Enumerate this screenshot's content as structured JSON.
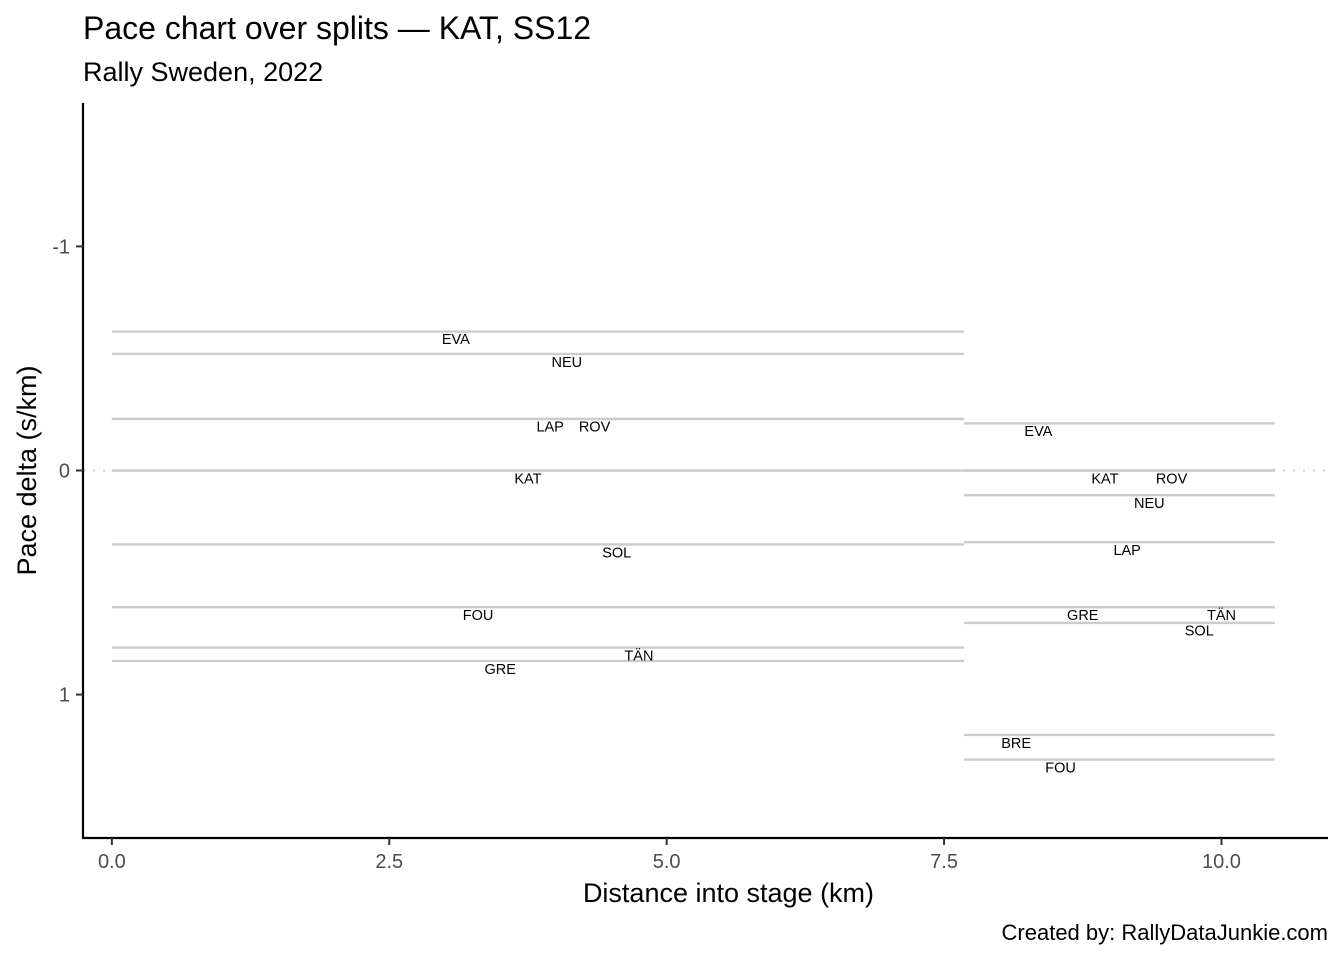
{
  "chart_data": {
    "type": "line",
    "title": "Pace chart over splits — KAT, SS12",
    "subtitle": "Rally Sweden, 2022",
    "caption": "Created by: RallyDataJunkie.com",
    "xlabel": "Distance into stage (km)",
    "ylabel": "Pace delta (s/km)",
    "xlim": [
      -0.26,
      10.96
    ],
    "ylim": [
      1.64,
      -1.64
    ],
    "y_reversed": true,
    "x_ticks": [
      0.0,
      2.5,
      5.0,
      7.5,
      10.0
    ],
    "x_tick_labels": [
      "0.0",
      "2.5",
      "5.0",
      "7.5",
      "10.0"
    ],
    "y_ticks": [
      -1,
      0,
      1
    ],
    "y_tick_labels": [
      "-1",
      "0",
      "1"
    ],
    "reference_line": {
      "y": 0,
      "style": "dotted"
    },
    "grid": false,
    "colors": {
      "segment": "#cccccc",
      "reference": "#cccccc",
      "axis": "#000000",
      "tick_text": "#4d4d4d"
    },
    "splits": [
      {
        "x_start": 0.0,
        "x_end": 7.68,
        "series": [
          {
            "name": "EVA",
            "pace_delta": -0.62,
            "label_x": 3.1,
            "label_y": -0.586
          },
          {
            "name": "NEU",
            "pace_delta": -0.52,
            "label_x": 4.1,
            "label_y": -0.485
          },
          {
            "name": "LAP",
            "pace_delta": -0.23,
            "label_x": 3.95,
            "label_y": -0.196
          },
          {
            "name": "ROV",
            "pace_delta": -0.23,
            "label_x": 4.35,
            "label_y": -0.196
          },
          {
            "name": "KAT",
            "pace_delta": 0.0,
            "label_x": 3.75,
            "label_y": 0.035
          },
          {
            "name": "SOL",
            "pace_delta": 0.33,
            "label_x": 4.55,
            "label_y": 0.365
          },
          {
            "name": "FOU",
            "pace_delta": 0.61,
            "label_x": 3.3,
            "label_y": 0.645
          },
          {
            "name": "TÄN",
            "pace_delta": 0.79,
            "label_x": 4.75,
            "label_y": 0.825
          },
          {
            "name": "GRE",
            "pace_delta": 0.85,
            "label_x": 3.5,
            "label_y": 0.885
          }
        ]
      },
      {
        "x_start": 7.68,
        "x_end": 10.48,
        "series": [
          {
            "name": "EVA",
            "pace_delta": -0.21,
            "label_x": 8.35,
            "label_y": -0.176
          },
          {
            "name": "KAT",
            "pace_delta": 0.0,
            "label_x": 8.95,
            "label_y": 0.035
          },
          {
            "name": "ROV",
            "pace_delta": 0.0,
            "label_x": 9.55,
            "label_y": 0.035
          },
          {
            "name": "NEU",
            "pace_delta": 0.11,
            "label_x": 9.35,
            "label_y": 0.145
          },
          {
            "name": "LAP",
            "pace_delta": 0.32,
            "label_x": 9.15,
            "label_y": 0.355
          },
          {
            "name": "GRE",
            "pace_delta": 0.61,
            "label_x": 8.75,
            "label_y": 0.645
          },
          {
            "name": "TÄN",
            "pace_delta": 0.61,
            "label_x": 10.0,
            "label_y": 0.645
          },
          {
            "name": "SOL",
            "pace_delta": 0.68,
            "label_x": 9.8,
            "label_y": 0.715
          },
          {
            "name": "BRE",
            "pace_delta": 1.18,
            "label_x": 8.15,
            "label_y": 1.215
          },
          {
            "name": "FOU",
            "pace_delta": 1.29,
            "label_x": 8.55,
            "label_y": 1.325
          }
        ]
      }
    ]
  }
}
